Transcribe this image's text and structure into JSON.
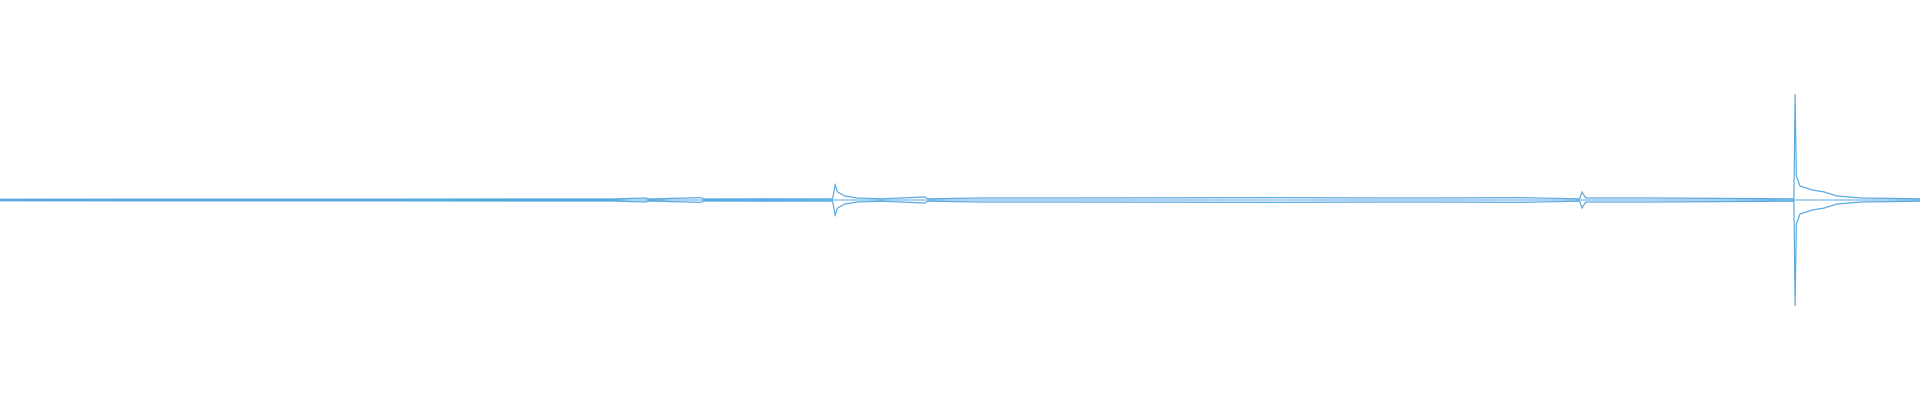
{
  "chart_data": {
    "type": "waveform",
    "color": "#5aa9e0",
    "xlim": [
      0,
      1568
    ],
    "ylim": [
      -1,
      1
    ],
    "x": [
      0,
      500,
      527,
      530,
      572,
      575,
      680,
      682,
      684,
      690,
      700,
      720,
      755,
      758,
      800,
      880,
      1050,
      1120,
      1180,
      1238,
      1290,
      1292,
      1295,
      1350,
      1465,
      1466,
      1467,
      1470,
      1480,
      1490,
      1500,
      1520,
      1568
    ],
    "values": [
      0.004,
      0.005,
      0.01,
      0.005,
      0.012,
      0.005,
      0.006,
      0.075,
      0.04,
      0.02,
      0.01,
      0.006,
      0.015,
      0.006,
      0.01,
      0.01,
      0.012,
      0.01,
      0.01,
      0.012,
      0.006,
      0.04,
      0.01,
      0.01,
      0.006,
      0.53,
      0.12,
      0.07,
      0.05,
      0.04,
      0.02,
      0.01,
      0.006
    ]
  }
}
